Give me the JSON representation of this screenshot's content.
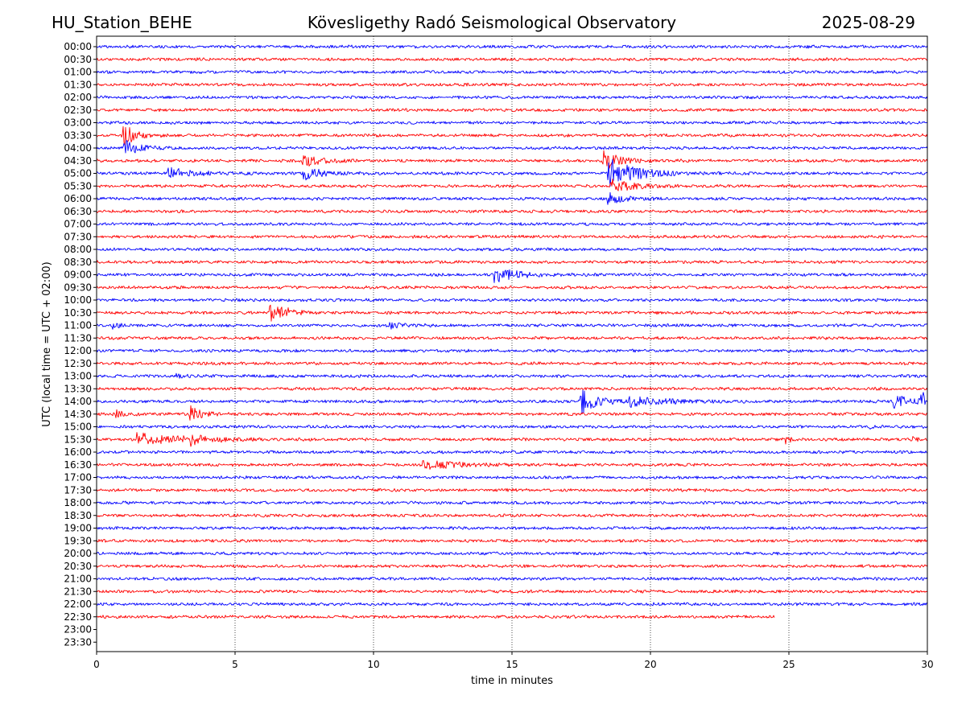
{
  "header": {
    "station": "HU_Station_BEHE",
    "observatory": "Kövesligethy Radó Seismological Observatory",
    "date": "2025-08-29"
  },
  "chart_data": {
    "type": "line",
    "title": "Kövesligethy Radó Seismological Observatory",
    "xlabel": "time in minutes",
    "ylabel": "UTC (local time = UTC + 02:00)",
    "xlim": [
      0,
      30
    ],
    "xticks": [
      "0",
      "5",
      "10",
      "15",
      "20",
      "25",
      "30"
    ],
    "grid": "vertical dotted lines at x ticks",
    "row_labels": [
      "00:00",
      "00:30",
      "01:00",
      "01:30",
      "02:00",
      "02:30",
      "03:00",
      "03:30",
      "04:00",
      "04:30",
      "05:00",
      "05:30",
      "06:00",
      "06:30",
      "07:00",
      "07:30",
      "08:00",
      "08:30",
      "09:00",
      "09:30",
      "10:00",
      "10:30",
      "11:00",
      "11:30",
      "12:00",
      "12:30",
      "13:00",
      "13:30",
      "14:00",
      "14:30",
      "15:00",
      "15:30",
      "16:00",
      "16:30",
      "17:00",
      "17:30",
      "18:00",
      "18:30",
      "19:00",
      "19:30",
      "20:00",
      "20:30",
      "21:00",
      "21:30",
      "22:00",
      "22:30",
      "23:00",
      "23:30"
    ],
    "row_colors": [
      "#0000ff",
      "#ff0000"
    ],
    "noise_level": 0.5,
    "last_trace_row": "22:30",
    "last_trace_end_minute": 24.5,
    "events": [
      {
        "row": "03:30",
        "minute": 1.0,
        "amplitude": 3.2,
        "duration": 0.9
      },
      {
        "row": "04:00",
        "minute": 1.0,
        "amplitude": 2.2,
        "duration": 1.2
      },
      {
        "row": "05:00",
        "minute": 2.6,
        "amplitude": 1.6,
        "duration": 2.0
      },
      {
        "row": "04:30",
        "minute": 7.4,
        "amplitude": 2.0,
        "duration": 1.4
      },
      {
        "row": "05:00",
        "minute": 7.5,
        "amplitude": 2.0,
        "duration": 1.2
      },
      {
        "row": "04:30",
        "minute": 18.3,
        "amplitude": 3.0,
        "duration": 1.2
      },
      {
        "row": "05:00",
        "minute": 18.5,
        "amplitude": 4.5,
        "duration": 2.0
      },
      {
        "row": "05:30",
        "minute": 18.6,
        "amplitude": 2.0,
        "duration": 1.5
      },
      {
        "row": "06:00",
        "minute": 18.5,
        "amplitude": 1.5,
        "duration": 1.2
      },
      {
        "row": "09:00",
        "minute": 14.4,
        "amplitude": 2.2,
        "duration": 1.6
      },
      {
        "row": "10:30",
        "minute": 6.3,
        "amplitude": 4.0,
        "duration": 1.0
      },
      {
        "row": "11:00",
        "minute": 0.6,
        "amplitude": 0.8,
        "duration": 0.6
      },
      {
        "row": "11:00",
        "minute": 10.6,
        "amplitude": 1.0,
        "duration": 1.0
      },
      {
        "row": "13:00",
        "minute": 2.9,
        "amplitude": 0.8,
        "duration": 0.6
      },
      {
        "row": "14:00",
        "minute": 17.5,
        "amplitude": 3.5,
        "duration": 1.2
      },
      {
        "row": "14:00",
        "minute": 19.2,
        "amplitude": 1.5,
        "duration": 3.0
      },
      {
        "row": "14:00",
        "minute": 28.8,
        "amplitude": 2.0,
        "duration": 1.2
      },
      {
        "row": "14:00",
        "minute": 29.8,
        "amplitude": 2.5,
        "duration": 0.6
      },
      {
        "row": "14:30",
        "minute": 0.7,
        "amplitude": 1.0,
        "duration": 0.7
      },
      {
        "row": "14:30",
        "minute": 3.4,
        "amplitude": 2.4,
        "duration": 0.8
      },
      {
        "row": "15:00",
        "minute": 27.8,
        "amplitude": 0.8,
        "duration": 0.5
      },
      {
        "row": "15:30",
        "minute": 1.5,
        "amplitude": 1.8,
        "duration": 3.5
      },
      {
        "row": "15:30",
        "minute": 3.4,
        "amplitude": 1.2,
        "duration": 1.0
      },
      {
        "row": "15:30",
        "minute": 24.9,
        "amplitude": 1.0,
        "duration": 0.4
      },
      {
        "row": "15:30",
        "minute": 29.5,
        "amplitude": 1.0,
        "duration": 0.4
      },
      {
        "row": "16:30",
        "minute": 11.8,
        "amplitude": 1.2,
        "duration": 3.0
      }
    ]
  }
}
